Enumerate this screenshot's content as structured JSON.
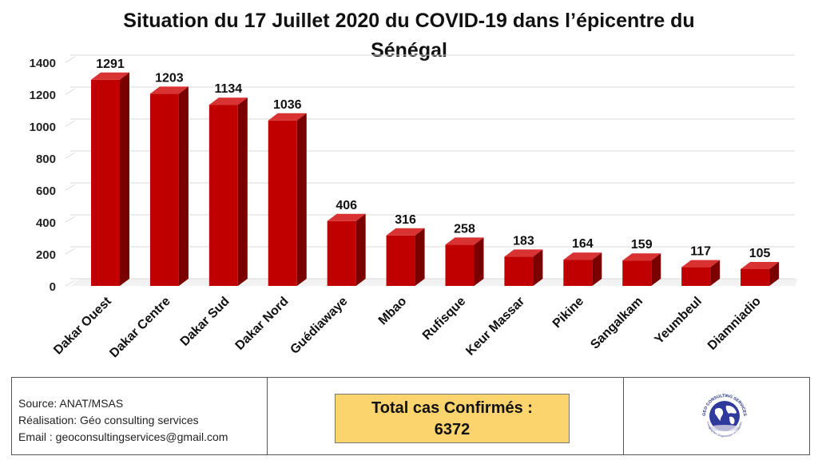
{
  "chart_data": {
    "type": "bar",
    "title_line1": "Situation du 17 Juillet 2020 du COVID-19 dans l’épicentre du",
    "title_line2": "Sénégal",
    "categories": [
      "Dakar Ouest",
      "Dakar Centre",
      "Dakar Sud",
      "Dakar Nord",
      "Guédiawaye",
      "Mbao",
      "Rufisque",
      "Keur Massar",
      "Pikine",
      "Sangalkam",
      "Yeumbeul",
      "Diamniadio"
    ],
    "values": [
      1291,
      1203,
      1134,
      1036,
      406,
      316,
      258,
      183,
      164,
      159,
      117,
      105
    ],
    "ylim": [
      0,
      1400
    ],
    "yticks": [
      0,
      200,
      400,
      600,
      800,
      1000,
      1200,
      1400
    ],
    "grid": true,
    "style": "3d-column",
    "colors": {
      "bar_front": "#c00000",
      "bar_side": "#7a0000",
      "bar_top": "#d83232",
      "grid": "#d9d9d9"
    }
  },
  "footer": {
    "source": "Source: ANAT/MSAS",
    "realisation": "Réalisation: Géo consulting services",
    "email": "Email : geoconsultingservices@gmail.com",
    "total_label": "Total cas Confirmés :",
    "total_value": "6372",
    "total_box_color": "#fbd46e",
    "logo_text": "GEO CONSULTING SERVICES",
    "logo_subtext": "Cartographier, Diagnostiquer et Conseiller"
  }
}
